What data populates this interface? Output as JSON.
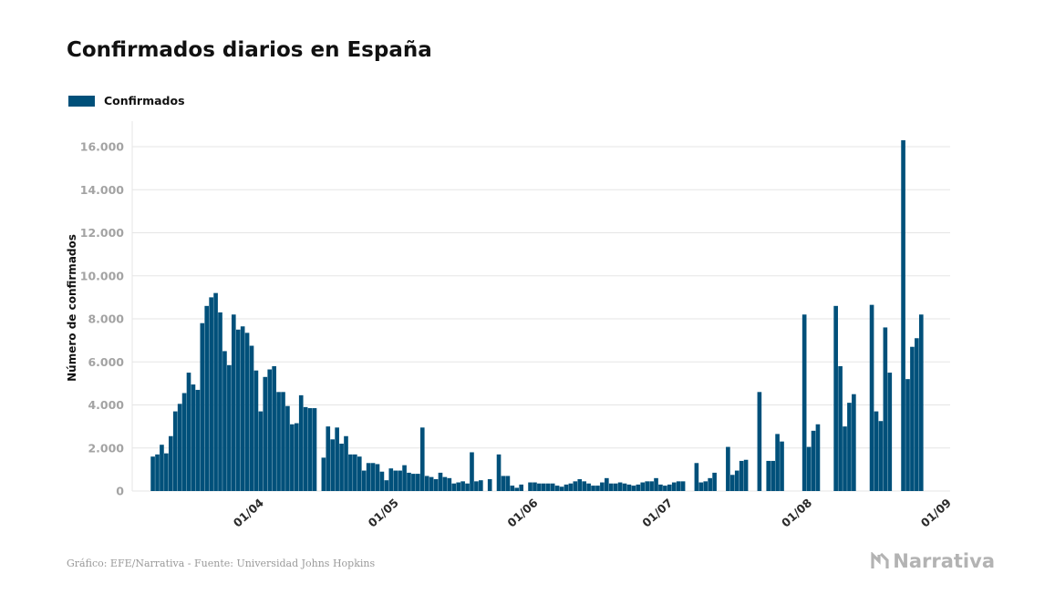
{
  "title": "Confirmados diarios en España",
  "legend": {
    "label": "Confirmados"
  },
  "colors": {
    "bar": "#00507a",
    "grid": "#e5e5e5",
    "axis_text": "#a3a3a3"
  },
  "source": "Gráfico: EFE/Narrativa - Fuente: Universidad Johns Hopkins",
  "brand": {
    "name": "Narrativa",
    "icon": "narrativa-logo-icon"
  },
  "chart_data": {
    "type": "bar",
    "title": "Confirmados diarios en España",
    "ylabel": "Número de confirmados",
    "xlabel": "",
    "ylim": [
      0,
      17000
    ],
    "yticks": [
      0,
      2000,
      4000,
      6000,
      8000,
      10000,
      12000,
      14000,
      16000
    ],
    "ytick_labels": [
      "0",
      "2.000",
      "4.000",
      "6.000",
      "8.000",
      "10.000",
      "12.000",
      "14.000",
      "16.000"
    ],
    "xticks": [
      "01/04",
      "01/05",
      "01/06",
      "01/07",
      "01/08",
      "01/09"
    ],
    "start_date": "2020-03-10",
    "grid": true,
    "legend_position": "top-left",
    "series": [
      {
        "name": "Confirmados",
        "values": [
          1600,
          1700,
          2150,
          1750,
          2550,
          3700,
          4050,
          4550,
          5500,
          4950,
          4700,
          7800,
          8600,
          9000,
          9200,
          8300,
          6500,
          5850,
          8200,
          7500,
          7650,
          7350,
          6750,
          5600,
          3700,
          5300,
          5650,
          5800,
          4600,
          4600,
          3950,
          3100,
          3150,
          4450,
          3900,
          3850,
          3850,
          0,
          1550,
          3000,
          2400,
          2950,
          2200,
          2550,
          1700,
          1700,
          1600,
          950,
          1300,
          1300,
          1250,
          900,
          500,
          1050,
          950,
          950,
          1200,
          850,
          800,
          800,
          2950,
          700,
          650,
          550,
          850,
          650,
          600,
          350,
          400,
          450,
          350,
          1800,
          450,
          500,
          0,
          550,
          0,
          1700,
          700,
          700,
          250,
          150,
          300,
          0,
          400,
          400,
          350,
          350,
          350,
          350,
          250,
          200,
          300,
          350,
          450,
          550,
          450,
          350,
          250,
          250,
          400,
          600,
          350,
          350,
          400,
          350,
          300,
          250,
          300,
          400,
          450,
          450,
          600,
          300,
          250,
          300,
          400,
          450,
          450,
          0,
          0,
          1300,
          400,
          450,
          600,
          850,
          0,
          0,
          2050,
          750,
          950,
          1400,
          1450,
          0,
          0,
          4600,
          0,
          1400,
          1400,
          2650,
          2300,
          0,
          0,
          0,
          0,
          8200,
          2050,
          2800,
          3100,
          0,
          0,
          0,
          8600,
          5800,
          3000,
          4100,
          4500,
          0,
          0,
          0,
          8650,
          3700,
          3250,
          7600,
          5500,
          0,
          0,
          16300,
          5200,
          6700,
          7100,
          8200
        ]
      }
    ]
  }
}
